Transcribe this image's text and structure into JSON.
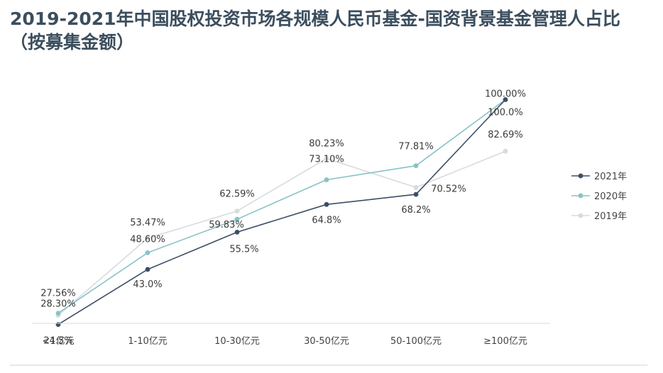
{
  "chart_data": {
    "type": "line",
    "title": "2019-2021年中国股权投资市场各规模人民币基金-国资背景基金管理人占比（按募集金额）",
    "xlabel": "",
    "ylabel": "",
    "categories": [
      "<1亿元",
      "1-10亿元",
      "10-30亿元",
      "30-50亿元",
      "50-100亿元",
      "≥100亿元"
    ],
    "ylim": [
      0,
      100
    ],
    "grid": false,
    "legend_position": "right",
    "series": [
      {
        "name": "2021年",
        "color": "#3b4e66",
        "values": [
          24.5,
          43.0,
          55.5,
          64.8,
          68.2,
          100.0
        ],
        "labels": [
          "24.5%",
          "43.0%",
          "55.5%",
          "64.8%",
          "68.2%",
          "100.0%"
        ]
      },
      {
        "name": "2020年",
        "color": "#88c2c7",
        "values": [
          28.3,
          48.6,
          59.83,
          73.1,
          77.81,
          100.0
        ],
        "labels": [
          "28.30%",
          "48.60%",
          "59.83%",
          "73.10%",
          "77.81%",
          "100.00%"
        ]
      },
      {
        "name": "2019年",
        "color": "#d6dbe0",
        "values": [
          27.56,
          53.47,
          62.59,
          80.23,
          70.52,
          82.69
        ],
        "labels": [
          "27.56%",
          "53.47%",
          "62.59%",
          "80.23%",
          "70.52%",
          "82.69%"
        ]
      }
    ]
  }
}
